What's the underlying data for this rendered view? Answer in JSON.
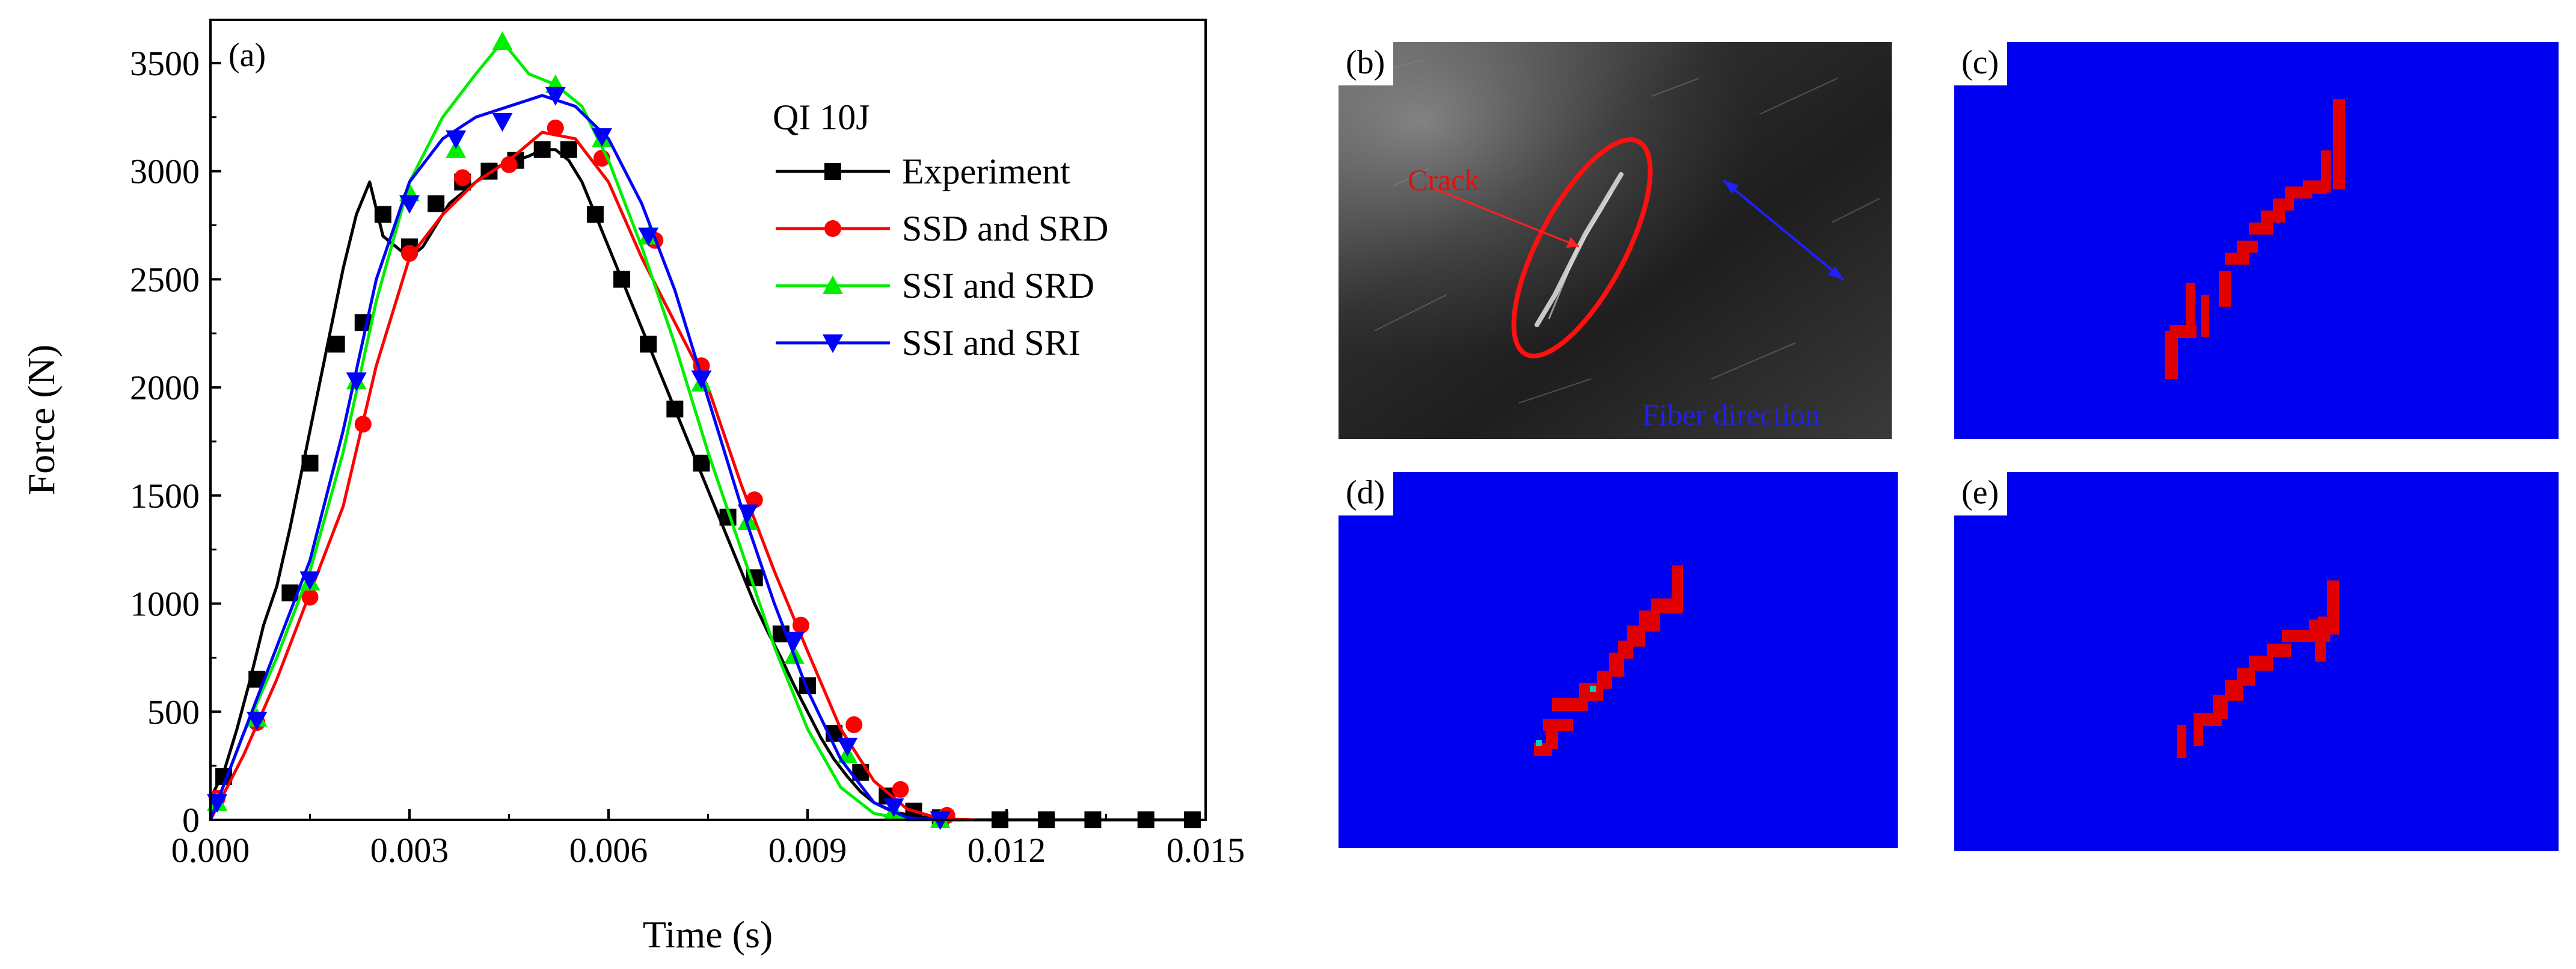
{
  "chart_data": {
    "type": "line",
    "panel_label": "(a)",
    "legend_title": "QI 10J",
    "xlabel": "Time (s)",
    "ylabel": "Force (N)",
    "xlim": [
      0,
      0.015
    ],
    "ylim": [
      0,
      3700
    ],
    "xticks": [
      0.0,
      0.003,
      0.006,
      0.009,
      0.012,
      0.015
    ],
    "xtick_labels": [
      "0.000",
      "0.003",
      "0.006",
      "0.009",
      "0.012",
      "0.015"
    ],
    "yticks": [
      0,
      500,
      1000,
      1500,
      2000,
      2500,
      3000,
      3500
    ],
    "ytick_labels": [
      "0",
      "500",
      "1000",
      "1500",
      "2000",
      "2500",
      "3000",
      "3500"
    ],
    "legend": "top-right",
    "series": [
      {
        "name": "Experiment",
        "color": "#000000",
        "marker": "square",
        "x": [
          0.0,
          0.0002,
          0.0004,
          0.0006,
          0.0008,
          0.001,
          0.0012,
          0.0014,
          0.0016,
          0.0018,
          0.002,
          0.0022,
          0.0024,
          0.0026,
          0.0028,
          0.003,
          0.0032,
          0.0034,
          0.0036,
          0.0038,
          0.004,
          0.0042,
          0.0044,
          0.0046,
          0.0048,
          0.005,
          0.0052,
          0.0054,
          0.0056,
          0.0058,
          0.006,
          0.0062,
          0.0064,
          0.0066,
          0.0068,
          0.007,
          0.0072,
          0.0074,
          0.0076,
          0.0078,
          0.008,
          0.0082,
          0.0084,
          0.0086,
          0.0088,
          0.009,
          0.0092,
          0.0094,
          0.0096,
          0.0098,
          0.01,
          0.0102,
          0.0104,
          0.0106,
          0.0108,
          0.011,
          0.0112,
          0.0116,
          0.012,
          0.0126,
          0.0132,
          0.014,
          0.0148
        ],
        "y": [
          100,
          220,
          420,
          650,
          900,
          1080,
          1350,
          1650,
          1950,
          2250,
          2550,
          2800,
          2950,
          2700,
          2650,
          2600,
          2650,
          2750,
          2850,
          2900,
          2950,
          3000,
          3030,
          3050,
          3070,
          3100,
          3100,
          3050,
          2950,
          2800,
          2650,
          2500,
          2350,
          2200,
          2050,
          1900,
          1750,
          1600,
          1450,
          1300,
          1150,
          1000,
          870,
          750,
          620,
          500,
          380,
          280,
          200,
          130,
          80,
          50,
          30,
          20,
          10,
          5,
          0,
          0,
          0,
          0,
          0,
          0,
          0
        ],
        "marker_x": [
          0.0002,
          0.0007,
          0.0012,
          0.0015,
          0.0019,
          0.0023,
          0.0026,
          0.003,
          0.0034,
          0.0038,
          0.0042,
          0.0046,
          0.005,
          0.0054,
          0.0058,
          0.0062,
          0.0066,
          0.007,
          0.0074,
          0.0078,
          0.0082,
          0.0086,
          0.009,
          0.0094,
          0.0098,
          0.0102,
          0.0106,
          0.011,
          0.0119,
          0.0126,
          0.0133,
          0.0141,
          0.0148
        ],
        "marker_y": [
          200,
          650,
          1050,
          1650,
          2200,
          2300,
          2800,
          2650,
          2850,
          2950,
          3000,
          3050,
          3100,
          3100,
          2800,
          2500,
          2200,
          1900,
          1650,
          1400,
          1120,
          860,
          620,
          400,
          220,
          110,
          40,
          10,
          0,
          0,
          0,
          0,
          0
        ]
      },
      {
        "name": "SSD and SRD",
        "color": "#ff0000",
        "marker": "circle",
        "x": [
          0.0,
          0.0005,
          0.001,
          0.0015,
          0.002,
          0.0025,
          0.003,
          0.0035,
          0.004,
          0.0045,
          0.005,
          0.0055,
          0.006,
          0.0065,
          0.007,
          0.0075,
          0.008,
          0.0085,
          0.009,
          0.0095,
          0.01,
          0.0105,
          0.011,
          0.0115
        ],
        "y": [
          0,
          300,
          650,
          1050,
          1450,
          2100,
          2600,
          2800,
          2950,
          3050,
          3180,
          3150,
          2950,
          2600,
          2300,
          2000,
          1550,
          1150,
          780,
          420,
          180,
          50,
          5,
          0
        ],
        "marker_x": [
          0.0001,
          0.0007,
          0.0015,
          0.0023,
          0.003,
          0.0038,
          0.0045,
          0.0052,
          0.0059,
          0.0067,
          0.0074,
          0.0082,
          0.0089,
          0.0097,
          0.0104,
          0.0111
        ],
        "marker_y": [
          100,
          450,
          1030,
          1830,
          2620,
          2970,
          3030,
          3200,
          3060,
          2680,
          2100,
          1480,
          900,
          440,
          140,
          20
        ]
      },
      {
        "name": "SSI and SRD",
        "color": "#00ee00",
        "marker": "triangle-up",
        "x": [
          0.0,
          0.0005,
          0.001,
          0.0015,
          0.002,
          0.0025,
          0.003,
          0.0035,
          0.004,
          0.0044,
          0.0048,
          0.0052,
          0.0056,
          0.006,
          0.0065,
          0.007,
          0.0075,
          0.008,
          0.0085,
          0.009,
          0.0095,
          0.01,
          0.0105,
          0.011
        ],
        "y": [
          0,
          400,
          750,
          1150,
          1700,
          2400,
          2950,
          3250,
          3450,
          3600,
          3450,
          3400,
          3300,
          3050,
          2650,
          2200,
          1700,
          1250,
          800,
          420,
          150,
          30,
          0,
          0
        ],
        "marker_x": [
          0.0001,
          0.0007,
          0.0015,
          0.0022,
          0.003,
          0.0037,
          0.0044,
          0.0052,
          0.0059,
          0.0066,
          0.0074,
          0.0081,
          0.0088,
          0.0096,
          0.0103,
          0.011
        ],
        "marker_y": [
          80,
          470,
          1100,
          2030,
          2900,
          3100,
          3600,
          3400,
          3150,
          2700,
          2020,
          1380,
          760,
          300,
          40,
          0
        ]
      },
      {
        "name": "SSI and SRI",
        "color": "#0000ff",
        "marker": "triangle-down",
        "x": [
          0.0,
          0.0005,
          0.001,
          0.0015,
          0.002,
          0.0025,
          0.003,
          0.0035,
          0.004,
          0.0045,
          0.005,
          0.0055,
          0.006,
          0.0065,
          0.007,
          0.0075,
          0.008,
          0.0085,
          0.009,
          0.0095,
          0.01,
          0.0105,
          0.011
        ],
        "y": [
          0,
          400,
          800,
          1200,
          1800,
          2500,
          2950,
          3150,
          3250,
          3300,
          3350,
          3300,
          3150,
          2850,
          2450,
          1950,
          1450,
          1000,
          600,
          280,
          80,
          10,
          0
        ],
        "marker_x": [
          0.0001,
          0.0007,
          0.0015,
          0.0022,
          0.003,
          0.0037,
          0.0044,
          0.0052,
          0.0059,
          0.0066,
          0.0074,
          0.0081,
          0.0088,
          0.0096,
          0.0103,
          0.011
        ],
        "marker_y": [
          80,
          460,
          1110,
          2030,
          2850,
          3150,
          3230,
          3350,
          3160,
          2700,
          2040,
          1420,
          830,
          340,
          60,
          0
        ]
      }
    ]
  },
  "panels": {
    "b": {
      "label": "(b)",
      "crack_label": "Crack",
      "fiber_label": "Fiber direction"
    },
    "c": {
      "label": "(c)"
    },
    "d": {
      "label": "(d)"
    },
    "e": {
      "label": "(e)"
    }
  },
  "colors": {
    "sim_background": "#0000f0",
    "damage": "#e00000"
  }
}
